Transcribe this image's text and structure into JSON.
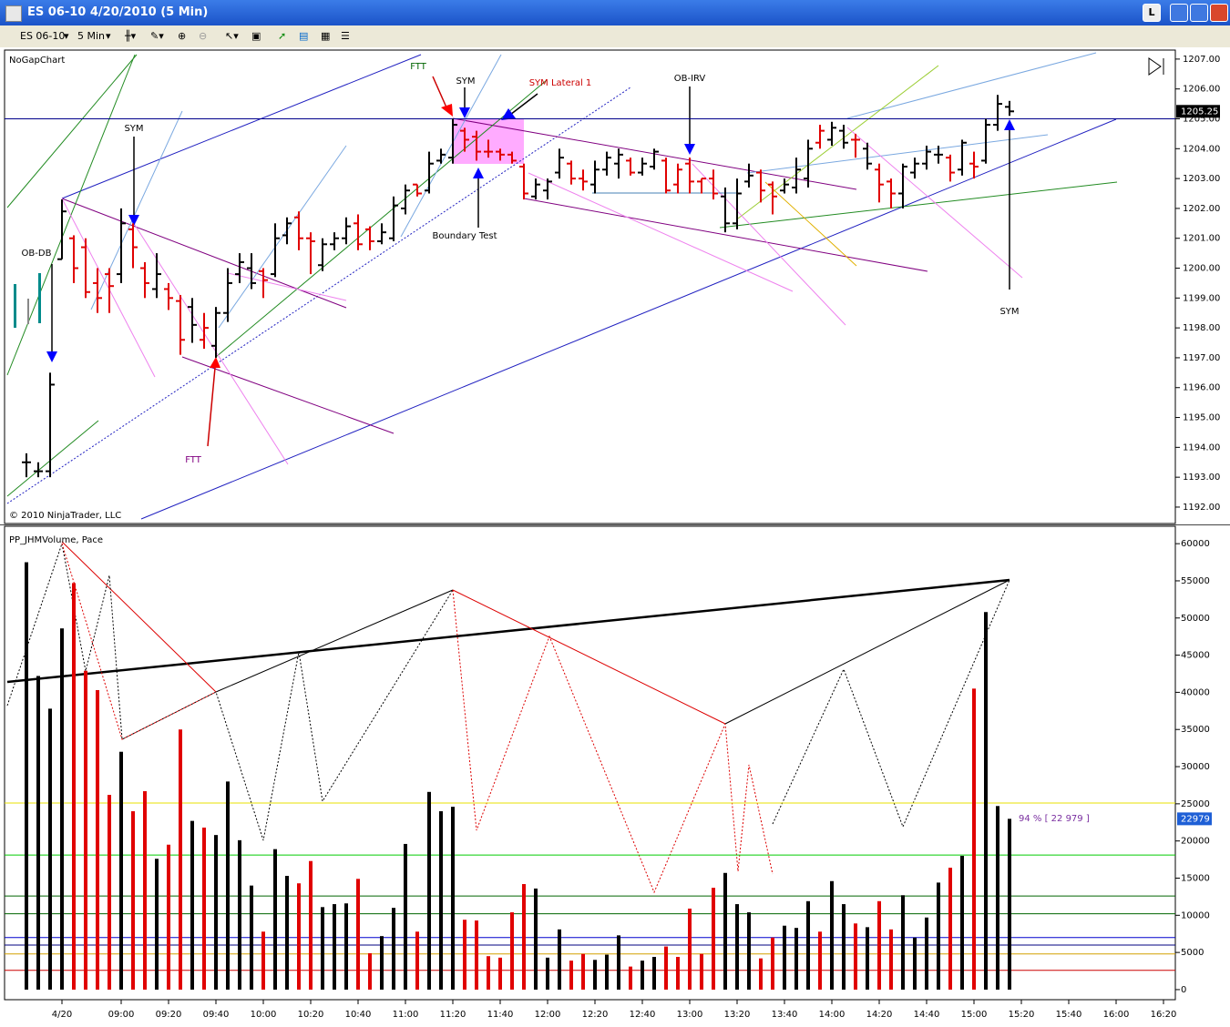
{
  "window": {
    "title": "ES 06-10  4/20/2010 (5 Min)",
    "button": "L"
  },
  "toolbar": {
    "instrument": "ES 06-10",
    "interval": "5 Min"
  },
  "chart_data": [
    {
      "type": "ohlc",
      "title": "NoGapChart",
      "copyright": "© 2010 NinjaTrader, LLC",
      "open": [
        1193.5,
        1193.2,
        1193.2,
        1200.3,
        1201.0,
        1200.7,
        1199.5,
        1199.8,
        1199.8,
        1201.3,
        1200.0,
        1199.3,
        1199.3,
        1198.9,
        1198.7,
        1197.6,
        1197.4,
        1198.5,
        1199.8,
        1200.0,
        1199.9,
        1199.8,
        1201.1,
        1201.7,
        1201.0,
        1200.1,
        1200.8,
        1201.0,
        1201.5,
        1201.3,
        1200.9,
        1201.0,
        1202.0,
        1202.8,
        1202.6,
        1203.6,
        1203.7,
        1204.6,
        1204.4,
        1203.9,
        1203.9,
        1203.8,
        1203.4,
        1202.4,
        1202.6,
        1203.2,
        1203.5,
        1203.0,
        1202.8,
        1203.3,
        1203.5,
        1203.6,
        1203.2,
        1203.4,
        1203.6,
        1202.8,
        1203.5,
        1202.9,
        1203.0,
        1202.4,
        1201.5,
        1202.9,
        1203.2,
        1202.8,
        1202.6,
        1202.7,
        1203.0,
        1204.2,
        1204.3,
        1204.6,
        1204.3,
        1204.0,
        1203.3,
        1202.9,
        1202.5,
        1203.2,
        1203.5,
        1203.8,
        1203.7,
        1203.3,
        1203.5,
        1203.6,
        1204.8,
        1205.4
      ],
      "high": [
        1193.8,
        1193.5,
        1196.5,
        1202.3,
        1201.1,
        1201.0,
        1200.0,
        1200.0,
        1202.0,
        1201.5,
        1200.2,
        1200.5,
        1199.5,
        1199.1,
        1199.0,
        1198.5,
        1198.7,
        1200.0,
        1200.5,
        1200.5,
        1200.0,
        1201.5,
        1201.7,
        1201.9,
        1201.2,
        1201.0,
        1201.2,
        1201.7,
        1201.8,
        1201.4,
        1201.5,
        1202.4,
        1202.8,
        1202.8,
        1203.9,
        1204.0,
        1205.0,
        1204.7,
        1204.6,
        1204.3,
        1204.0,
        1203.9,
        1203.5,
        1203.0,
        1203.0,
        1204.0,
        1203.6,
        1203.3,
        1203.6,
        1203.9,
        1204.0,
        1203.7,
        1203.7,
        1204.0,
        1203.7,
        1203.5,
        1203.7,
        1203.0,
        1203.3,
        1202.7,
        1203.0,
        1203.5,
        1203.3,
        1202.9,
        1203.0,
        1203.7,
        1204.3,
        1204.8,
        1204.9,
        1204.8,
        1204.5,
        1204.2,
        1203.5,
        1203.0,
        1203.5,
        1203.7,
        1204.1,
        1204.1,
        1203.8,
        1204.3,
        1203.9,
        1205.0,
        1205.8,
        1205.6
      ],
      "low": [
        1193.0,
        1193.0,
        1193.0,
        1200.3,
        1199.5,
        1199.0,
        1198.5,
        1198.5,
        1199.5,
        1200.0,
        1199.0,
        1199.0,
        1198.6,
        1197.1,
        1197.5,
        1197.3,
        1197.0,
        1198.2,
        1199.5,
        1199.3,
        1199.0,
        1199.7,
        1200.8,
        1200.6,
        1199.8,
        1199.9,
        1200.6,
        1200.8,
        1200.6,
        1200.6,
        1200.8,
        1200.9,
        1201.8,
        1202.4,
        1202.5,
        1203.5,
        1203.5,
        1203.9,
        1203.6,
        1203.7,
        1203.6,
        1203.5,
        1202.3,
        1202.3,
        1202.3,
        1203.0,
        1202.8,
        1202.6,
        1202.5,
        1203.1,
        1203.0,
        1203.1,
        1203.1,
        1203.3,
        1202.5,
        1202.5,
        1202.5,
        1202.5,
        1202.3,
        1201.2,
        1201.3,
        1202.7,
        1202.2,
        1201.8,
        1202.5,
        1202.5,
        1202.7,
        1204.0,
        1204.1,
        1204.0,
        1203.7,
        1203.3,
        1202.2,
        1202.0,
        1202.0,
        1203.0,
        1203.3,
        1203.5,
        1202.9,
        1203.1,
        1203.0,
        1203.5,
        1204.6,
        1205.1
      ],
      "close": [
        1193.5,
        1193.2,
        1196.1,
        1201.9,
        1200.0,
        1199.2,
        1199.0,
        1199.4,
        1201.5,
        1200.7,
        1199.5,
        1199.8,
        1199.0,
        1197.6,
        1198.1,
        1198.0,
        1198.5,
        1199.5,
        1200.2,
        1199.5,
        1199.6,
        1201.0,
        1201.5,
        1201.0,
        1200.9,
        1200.8,
        1201.0,
        1201.4,
        1200.8,
        1200.9,
        1201.2,
        1202.1,
        1202.6,
        1202.5,
        1203.5,
        1203.8,
        1204.8,
        1204.3,
        1203.9,
        1203.9,
        1203.8,
        1203.6,
        1202.5,
        1202.8,
        1202.9,
        1203.7,
        1203.0,
        1202.9,
        1203.3,
        1203.7,
        1203.8,
        1203.2,
        1203.5,
        1203.9,
        1202.6,
        1203.3,
        1202.9,
        1203.0,
        1202.5,
        1201.5,
        1202.5,
        1203.1,
        1202.6,
        1202.4,
        1202.8,
        1203.3,
        1204.0,
        1204.6,
        1204.7,
        1204.2,
        1204.3,
        1203.5,
        1202.8,
        1202.5,
        1203.4,
        1203.5,
        1203.9,
        1203.8,
        1203.2,
        1204.2,
        1203.4,
        1204.8,
        1205.5,
        1205.25
      ],
      "ylim": [
        1191.45,
        1207.21
      ],
      "yticks": [
        {
          "value": 1192,
          "label": "1192.00"
        },
        {
          "value": 1193,
          "label": "1193.00"
        },
        {
          "value": 1194,
          "label": "1194.00"
        },
        {
          "value": 1195,
          "label": "1195.00"
        },
        {
          "value": 1196,
          "label": "1196.00"
        },
        {
          "value": 1197,
          "label": "1197.00"
        },
        {
          "value": 1198,
          "label": "1198.00"
        },
        {
          "value": 1199,
          "label": "1199.00"
        },
        {
          "value": 1200,
          "label": "1200.00"
        },
        {
          "value": 1201,
          "label": "1201.00"
        },
        {
          "value": 1202,
          "label": "1202.00"
        },
        {
          "value": 1203,
          "label": "1203.00"
        },
        {
          "value": 1204,
          "label": "1204.00"
        },
        {
          "value": 1205,
          "label": "1205.00"
        },
        {
          "value": 1206,
          "label": "1206.00"
        },
        {
          "value": 1207,
          "label": "1207.00"
        }
      ],
      "levels": [
        {
          "value": 1205,
          "color": "#00008b"
        }
      ],
      "annotations": [
        {
          "text": "SYM",
          "color": "#000000"
        },
        {
          "text": "OB-DB",
          "color": "#000000"
        },
        {
          "text": "FTT",
          "color": "#800080"
        },
        {
          "text": "FTT",
          "color": "#006400"
        },
        {
          "text": "SYM",
          "color": "#000000"
        },
        {
          "text": "SYM Lateral 1",
          "color": "#cc0000"
        },
        {
          "text": "Boundary Test",
          "color": "#000000"
        },
        {
          "text": "OB-IRV",
          "color": "#000000"
        },
        {
          "text": "SYM",
          "color": "#000000"
        }
      ]
    },
    {
      "type": "bar",
      "title": "PP_JHMVolume, Pace",
      "pace_label": "94 % [ 22 979 ]",
      "categories": [
        null,
        null,
        null,
        "4/20",
        null,
        null,
        null,
        null,
        "09:00",
        null,
        null,
        null,
        "09:20",
        null,
        null,
        null,
        "09:40",
        null,
        null,
        null,
        "10:00",
        null,
        null,
        null,
        "10:20",
        null,
        null,
        null,
        "10:40",
        null,
        null,
        null,
        "11:00",
        null,
        null,
        null,
        "11:20",
        null,
        null,
        null,
        "11:40",
        null,
        null,
        null,
        "12:00",
        null,
        null,
        null,
        "12:20",
        null,
        null,
        null,
        "12:40",
        null,
        null,
        null,
        "13:00",
        null,
        null,
        null,
        "13:20",
        null,
        null,
        null,
        "13:40",
        null,
        null,
        null,
        "14:00",
        null,
        null,
        null,
        "14:20",
        null,
        null,
        null,
        "14:40",
        null,
        null,
        null,
        "15:00",
        null,
        null,
        null,
        "15:20",
        null,
        null,
        null,
        "15:40",
        null,
        null,
        null,
        "16:00",
        null,
        null,
        null,
        "16:20"
      ],
      "values": [
        57500,
        42200,
        37800,
        48600,
        54700,
        42900,
        40300,
        26200,
        32000,
        24000,
        26700,
        17600,
        19500,
        35000,
        22700,
        21800,
        20800,
        28000,
        20100,
        14000,
        7800,
        18900,
        15300,
        14300,
        17300,
        11100,
        11500,
        11600,
        14900,
        4900,
        7200,
        11000,
        19600,
        7800,
        26600,
        24000,
        24600,
        9400,
        9300,
        4500,
        4300,
        10400,
        14200,
        13600,
        4300,
        8100,
        3900,
        4800,
        4000,
        4700,
        7300,
        3100,
        3900,
        4400,
        5800,
        4400,
        10900,
        4800,
        13700,
        15700,
        11500,
        10400,
        4200,
        7000,
        8600,
        8300,
        11900,
        7800,
        14600,
        11500,
        8900,
        8400,
        11900,
        8100,
        12700,
        7000,
        9700,
        14400,
        16400,
        18000,
        40500,
        50800,
        24700,
        22979,
        null,
        null,
        null,
        null,
        null,
        null,
        null,
        null,
        null,
        null,
        null,
        null,
        null
      ],
      "bar_colors": [
        "#000000",
        "#000000",
        "#000000",
        "#000000",
        "#e00000",
        "#e00000",
        "#e00000",
        "#e00000",
        "#000000",
        "#e00000",
        "#e00000",
        "#000000",
        "#e00000",
        "#e00000",
        "#000000",
        "#e00000",
        "#000000",
        "#000000",
        "#000000",
        "#000000",
        "#e00000",
        "#000000",
        "#000000",
        "#e00000",
        "#e00000",
        "#000000",
        "#000000",
        "#000000",
        "#e00000",
        "#e00000",
        "#000000",
        "#000000",
        "#000000",
        "#e00000",
        "#000000",
        "#000000",
        "#000000",
        "#e00000",
        "#e00000",
        "#e00000",
        "#e00000",
        "#e00000",
        "#e00000",
        "#000000",
        "#000000",
        "#000000",
        "#e00000",
        "#e00000",
        "#000000",
        "#000000",
        "#000000",
        "#e00000",
        "#000000",
        "#000000",
        "#e00000",
        "#e00000",
        "#e00000",
        "#e00000",
        "#e00000",
        "#000000",
        "#000000",
        "#000000",
        "#e00000",
        "#e00000",
        "#000000",
        "#000000",
        "#000000",
        "#e00000",
        "#000000",
        "#000000",
        "#e00000",
        "#000000",
        "#e00000",
        "#e00000",
        "#000000",
        "#000000",
        "#000000",
        "#000000",
        "#e00000",
        "#000000",
        "#e00000",
        "#000000",
        "#000000",
        "#000000",
        null,
        null,
        null,
        null,
        null,
        null,
        null,
        null,
        null,
        null,
        null,
        null,
        null
      ],
      "ylim": [
        -1600,
        62100
      ],
      "yticks": [
        0,
        5000,
        10000,
        15000,
        20000,
        25000,
        30000,
        35000,
        40000,
        45000,
        50000,
        55000,
        60000
      ],
      "levels": [
        {
          "value": 25100,
          "color": "#e8e000"
        },
        {
          "value": 18100,
          "color": "#00cc00"
        },
        {
          "value": 12600,
          "color": "#006400"
        },
        {
          "value": 10200,
          "color": "#006400"
        },
        {
          "value": 7000,
          "color": "#0000cd"
        },
        {
          "value": 6000,
          "color": "#000080"
        },
        {
          "value": 4800,
          "color": "#d4a000"
        },
        {
          "value": 2600,
          "color": "#cc0000"
        }
      ]
    }
  ]
}
